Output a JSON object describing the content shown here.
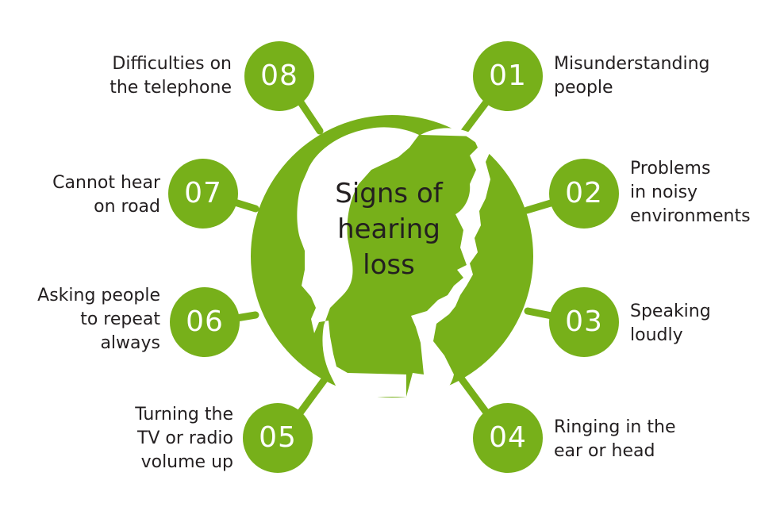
{
  "title": "Signs of\nhearing\nloss",
  "colors": {
    "green": "#77b01a",
    "text": "#231f20",
    "background": "#ffffff"
  },
  "signs": [
    {
      "number": "01",
      "label": "Misunderstanding\npeople"
    },
    {
      "number": "02",
      "label": "Problems\nin noisy\nenvironments"
    },
    {
      "number": "03",
      "label": "Speaking\nloudly"
    },
    {
      "number": "04",
      "label": "Ringing in the\near or head"
    },
    {
      "number": "05",
      "label": "Turning the\nTV or radio\nvolume up"
    },
    {
      "number": "06",
      "label": "Asking people\nto repeat\nalways"
    },
    {
      "number": "07",
      "label": "Cannot hear\non road"
    },
    {
      "number": "08",
      "label": "Difficulties on\nthe telephone"
    }
  ]
}
